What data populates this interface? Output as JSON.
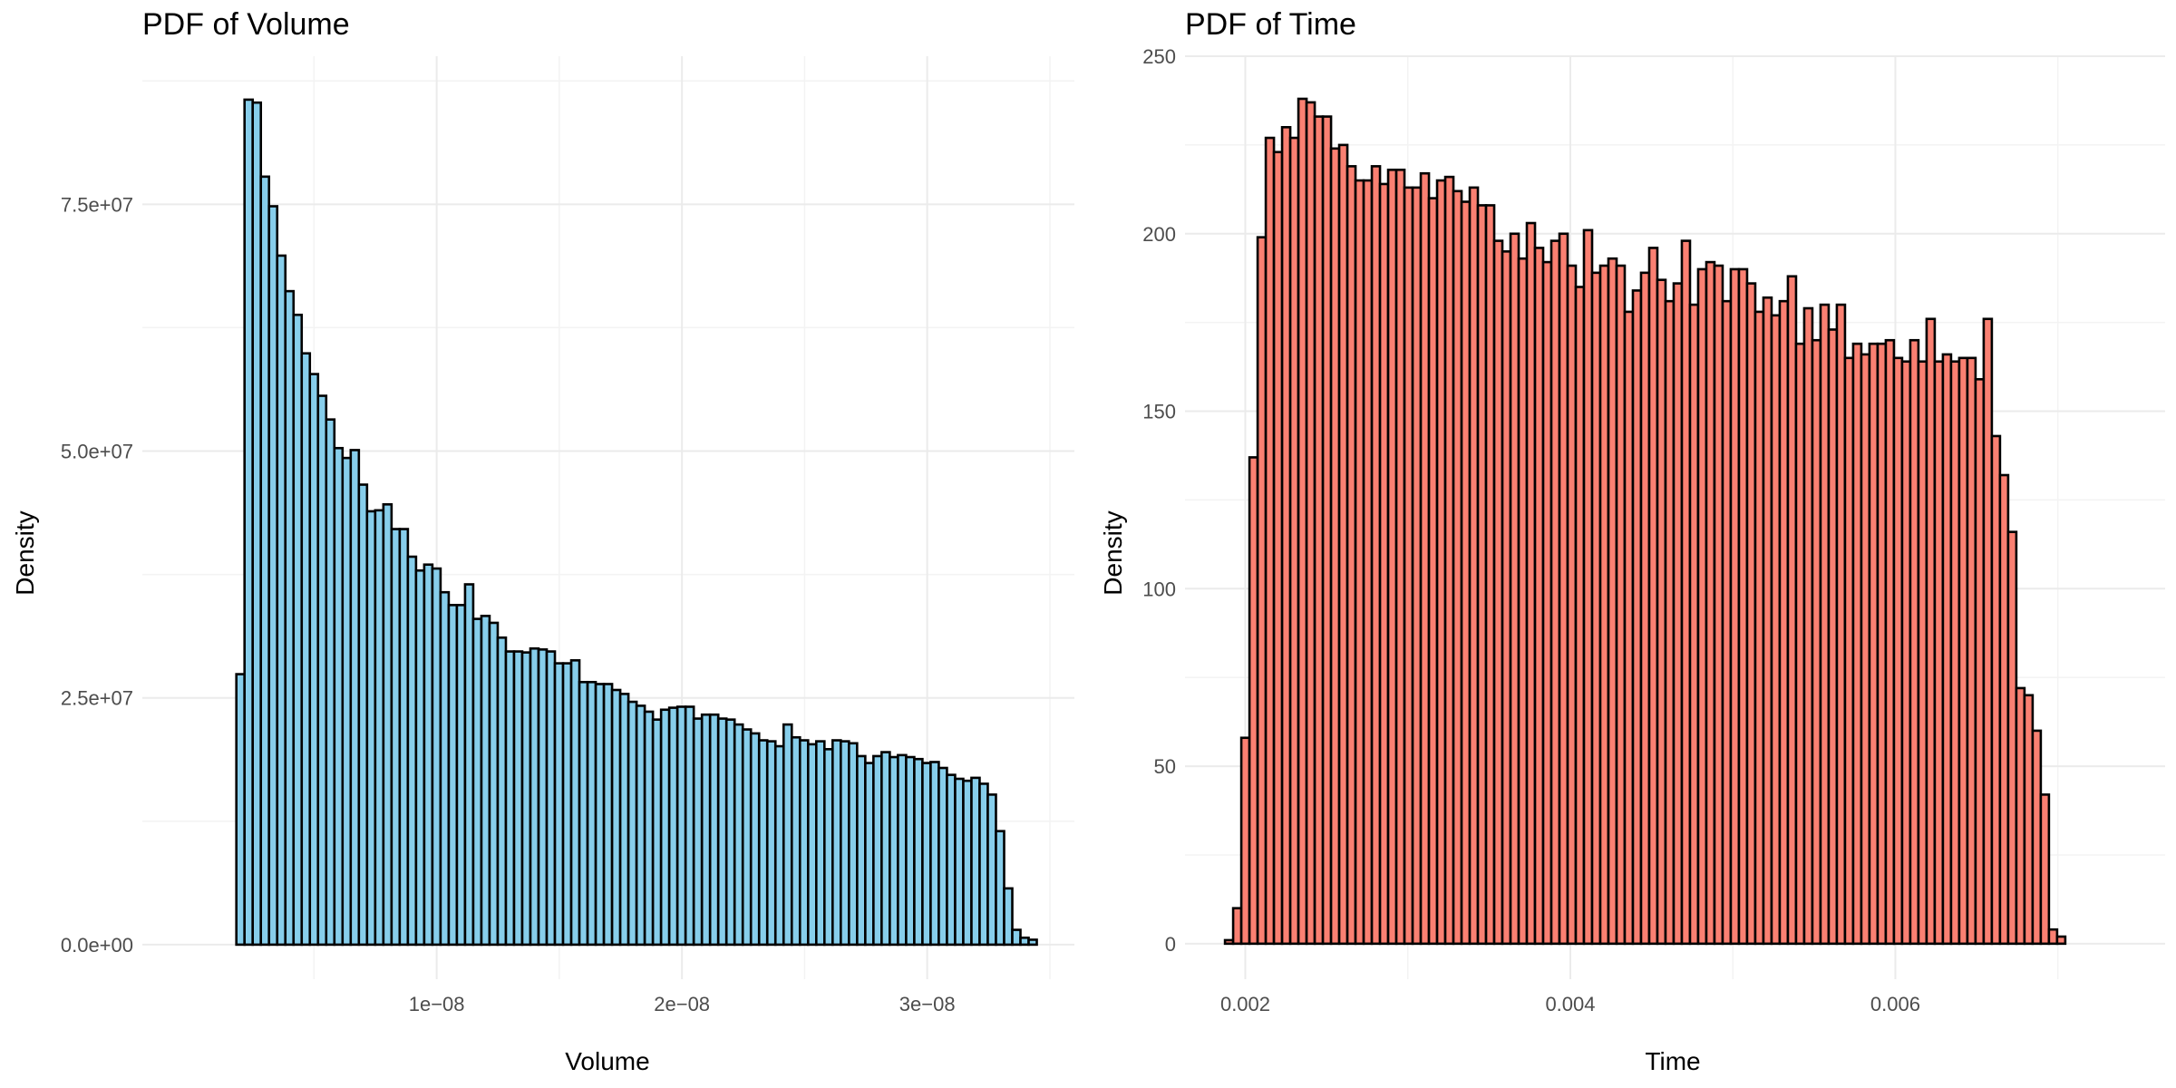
{
  "chart_data": [
    {
      "type": "bar",
      "title": "PDF of Volume",
      "xlabel": "Volume",
      "ylabel": "Density",
      "fill_color": "#87CEEB",
      "outline_color": "#000000",
      "grid": true,
      "legend": "none",
      "xlim": [
        -2e-09,
        3.6e-08
      ],
      "ylim": [
        -3500000.0,
        90000000.0
      ],
      "x_ticks": [
        1e-08,
        2e-08,
        3e-08
      ],
      "x_tick_labels": [
        "1e−08",
        "2e−08",
        "3e−08"
      ],
      "y_ticks": [
        0,
        25000000.0,
        50000000.0,
        75000000.0
      ],
      "y_tick_labels": [
        "0.0e+00",
        "2.5e+07",
        "5.0e+07",
        "7.5e+07"
      ],
      "bin_start": 1.5e-09,
      "bin_width": 3.33e-10,
      "values": [
        0.0,
        27.4,
        85.6,
        85.3,
        77.8,
        74.8,
        69.8,
        66.2,
        63.8,
        59.9,
        57.8,
        55.6,
        53.2,
        50.3,
        49.3,
        50.1,
        46.6,
        43.9,
        44.0,
        44.6,
        42.1,
        42.1,
        39.3,
        37.9,
        38.5,
        38.1,
        35.7,
        34.4,
        34.4,
        36.5,
        33.0,
        33.3,
        32.6,
        31.1,
        29.7,
        29.7,
        29.6,
        30.0,
        29.9,
        29.7,
        28.5,
        28.5,
        28.8,
        26.6,
        26.6,
        26.4,
        26.4,
        25.8,
        25.4,
        24.6,
        24.2,
        23.6,
        22.8,
        23.8,
        24.0,
        24.1,
        24.1,
        22.9,
        23.3,
        23.3,
        22.9,
        22.8,
        22.3,
        21.8,
        21.4,
        20.7,
        20.6,
        20.1,
        22.3,
        21.0,
        20.7,
        20.3,
        20.6,
        19.8,
        20.7,
        20.6,
        20.4,
        19.1,
        18.4,
        19.1,
        19.5,
        19.0,
        19.2,
        19.0,
        18.8,
        18.4,
        18.5,
        17.9,
        17.2,
        16.8,
        16.6,
        16.9,
        16.3,
        15.2,
        11.5,
        5.7,
        1.5,
        0.7,
        0.5
      ],
      "value_multiplier": 1000000
    },
    {
      "type": "bar",
      "title": "PDF of Time",
      "xlabel": "Time",
      "ylabel": "Density",
      "fill_color": "#FA8072",
      "outline_color": "#000000",
      "grid": true,
      "legend": "none",
      "xlim": [
        0.001629,
        0.00766
      ],
      "ylim": [
        -10,
        250
      ],
      "x_ticks": [
        0.002,
        0.004,
        0.006
      ],
      "x_tick_labels": [
        "0.002",
        "0.004",
        "0.006"
      ],
      "y_ticks": [
        0,
        50,
        100,
        150,
        200,
        250
      ],
      "y_tick_labels": [
        "0",
        "50",
        "100",
        "150",
        "200",
        "250"
      ],
      "bin_start": 0.001875,
      "bin_width": 5.02e-05,
      "values": [
        1,
        10,
        58,
        137,
        199,
        227,
        223,
        230,
        227,
        238,
        237,
        233,
        233,
        224,
        225,
        219,
        215,
        215,
        219,
        214,
        218,
        218,
        213,
        213,
        217,
        210,
        215,
        216,
        212,
        209,
        213,
        208,
        208,
        198,
        195,
        200,
        193,
        203,
        196,
        192,
        198,
        200,
        191,
        185,
        201,
        189,
        191,
        193,
        191,
        178,
        184,
        189,
        196,
        187,
        181,
        186,
        198,
        180,
        190,
        192,
        191,
        181,
        190,
        190,
        186,
        178,
        182,
        177,
        181,
        188,
        169,
        179,
        170,
        180,
        173,
        180,
        165,
        169,
        166,
        169,
        169,
        170,
        165,
        164,
        170,
        164,
        176,
        164,
        166,
        164,
        165,
        165,
        159,
        176,
        143,
        132,
        116,
        72,
        70,
        60,
        42,
        4,
        2
      ],
      "value_multiplier": 1
    }
  ]
}
